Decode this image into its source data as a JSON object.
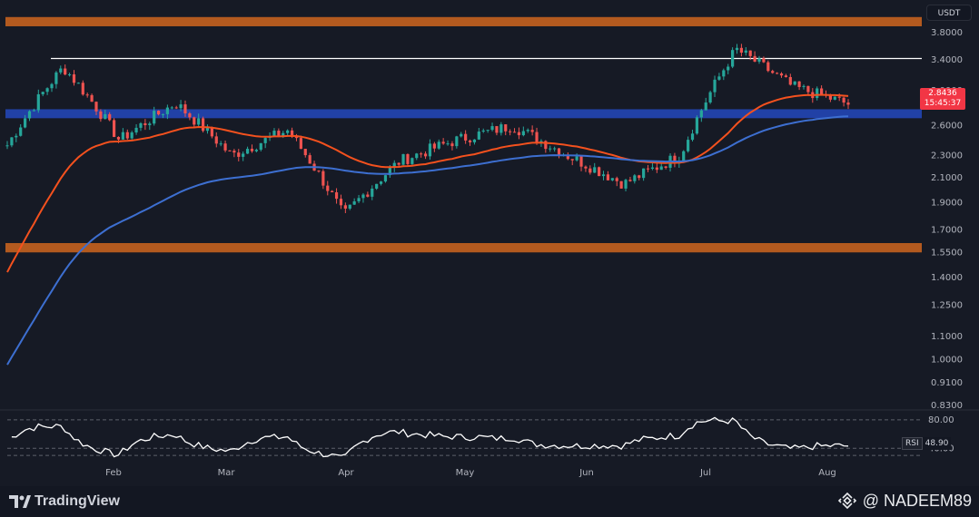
{
  "currency": "USDT",
  "price_tag": {
    "price": "2.8436",
    "countdown": "15:45:37"
  },
  "rsi": {
    "name": "RSI",
    "value": "48.90"
  },
  "footer": {
    "brand": "TradingView",
    "credit": "@ NADEEM89"
  },
  "colors": {
    "background": "#161a25",
    "up": "#26a69a",
    "down": "#ef5350",
    "ema_red": "#f4511e",
    "ma_blue": "#3d6fd1",
    "orange_zone": "#b35a1f",
    "blue_zone": "#2141a6",
    "resistance_line": "#ffffff"
  },
  "chart_data": {
    "type": "candlestick",
    "title": "",
    "y_axis": {
      "scale": "log",
      "ticks": [
        "3.8000",
        "3.4000",
        "3.0000",
        "2.6000",
        "2.3000",
        "2.1000",
        "1.9000",
        "1.7000",
        "1.5500",
        "1.4000",
        "1.2500",
        "1.1000",
        "1.0000",
        "0.9100",
        "0.8300"
      ]
    },
    "x_axis": {
      "ticks": [
        "Feb",
        "Mar",
        "Apr",
        "May",
        "Jun",
        "Jul",
        "Aug"
      ]
    },
    "zones": [
      {
        "name": "upper-supply-zone",
        "from": 3.9,
        "to": 4.05,
        "color": "orange"
      },
      {
        "name": "blue-demand-zone",
        "from": 2.68,
        "to": 2.78,
        "color": "blue"
      },
      {
        "name": "lower-demand-zone",
        "from": 1.55,
        "to": 1.61,
        "color": "orange"
      }
    ],
    "horizontal_lines": [
      {
        "name": "resistance",
        "value": 3.42
      }
    ],
    "price_series": [
      {
        "period": "start",
        "value": 2.4
      },
      {
        "period": "mid-Jan",
        "value": 3.3
      },
      {
        "period": "Feb",
        "value": 2.45
      },
      {
        "period": "late-Feb",
        "value": 2.85
      },
      {
        "period": "Mar",
        "value": 2.3
      },
      {
        "period": "mid-Mar",
        "value": 2.55
      },
      {
        "period": "Apr",
        "value": 1.8
      },
      {
        "period": "mid-Apr",
        "value": 2.25
      },
      {
        "period": "May",
        "value": 2.45
      },
      {
        "period": "mid-May",
        "value": 2.6
      },
      {
        "period": "Jun",
        "value": 2.3
      },
      {
        "period": "late-Jun",
        "value": 2.05
      },
      {
        "period": "Jul",
        "value": 2.3
      },
      {
        "period": "mid-Jul",
        "value": 3.55
      },
      {
        "period": "late-Jul",
        "value": 3.05
      },
      {
        "period": "Aug",
        "value": 2.84
      }
    ],
    "rsi_ticks": [
      "80.00",
      "40.00"
    ],
    "rsi_range": [
      20,
      90
    ]
  }
}
